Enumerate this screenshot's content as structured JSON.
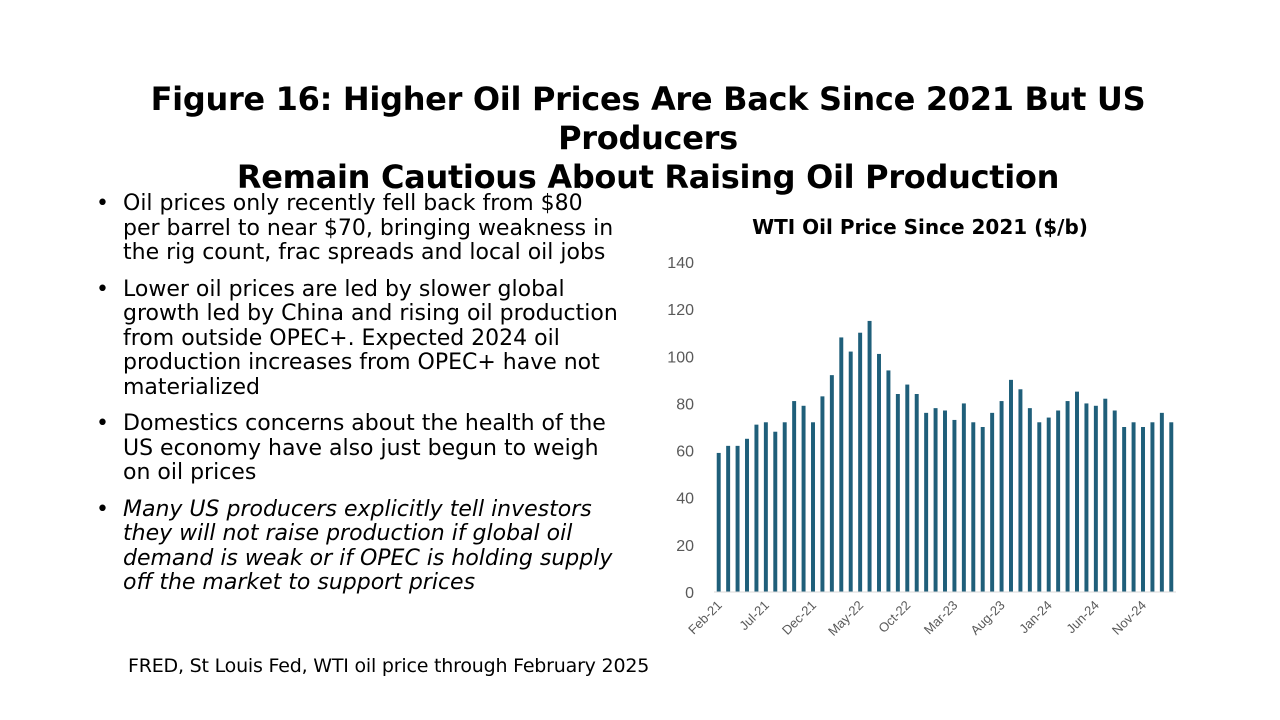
{
  "slide": {
    "title_line1": "Figure 16: Higher Oil Prices Are Back Since 2021 But US Producers",
    "title_line2": "Remain Cautious About Raising Oil Production",
    "bullets": [
      {
        "text": "Oil prices only recently fell back from $80 per barrel to near $70, bringing weakness in the rig count, frac spreads and local oil jobs",
        "italic": false
      },
      {
        "text": "Lower oil prices are led by slower global growth led by China and rising oil production from outside OPEC+. Expected 2024 oil production increases from OPEC+ have not materialized",
        "italic": false
      },
      {
        "text": "Domestics concerns about the health of the US economy have also just begun to weigh on oil prices",
        "italic": false
      },
      {
        "text": "Many US producers explicitly tell investors they will not raise production if global oil demand is weak or if OPEC is holding supply off the market to support prices",
        "italic": true
      }
    ],
    "bullet_glyph": "•",
    "source": "FRED, St Louis Fed, WTI oil price through February 2025"
  },
  "chart_data": {
    "type": "bar",
    "title": "WTI Oil Price Since 2021 ($/b)",
    "xlabel": "",
    "ylabel": "",
    "ylim": [
      0,
      140
    ],
    "yticks": [
      0,
      20,
      40,
      60,
      80,
      100,
      120,
      140
    ],
    "grid": false,
    "legend": "none",
    "bar_color": "#1F5F7A",
    "tick_labels": [
      "Feb-21",
      "Jul-21",
      "Dec-21",
      "May-22",
      "Oct-22",
      "Mar-23",
      "Aug-23",
      "Jan-24",
      "Jun-24",
      "Nov-24"
    ],
    "categories": [
      "Feb-21",
      "Mar-21",
      "Apr-21",
      "May-21",
      "Jun-21",
      "Jul-21",
      "Aug-21",
      "Sep-21",
      "Oct-21",
      "Nov-21",
      "Dec-21",
      "Jan-22",
      "Feb-22",
      "Mar-22",
      "Apr-22",
      "May-22",
      "Jun-22",
      "Jul-22",
      "Aug-22",
      "Sep-22",
      "Oct-22",
      "Nov-22",
      "Dec-22",
      "Jan-23",
      "Feb-23",
      "Mar-23",
      "Apr-23",
      "May-23",
      "Jun-23",
      "Jul-23",
      "Aug-23",
      "Sep-23",
      "Oct-23",
      "Nov-23",
      "Dec-23",
      "Jan-24",
      "Feb-24",
      "Mar-24",
      "Apr-24",
      "May-24",
      "Jun-24",
      "Jul-24",
      "Aug-24",
      "Sep-24",
      "Oct-24",
      "Nov-24",
      "Dec-24",
      "Jan-25",
      "Feb-25"
    ],
    "values": [
      59,
      62,
      62,
      65,
      71,
      72,
      68,
      72,
      81,
      79,
      72,
      83,
      92,
      108,
      102,
      110,
      115,
      101,
      94,
      84,
      88,
      84,
      76,
      78,
      77,
      73,
      80,
      72,
      70,
      76,
      81,
      90,
      86,
      78,
      72,
      74,
      77,
      81,
      85,
      80,
      79,
      82,
      77,
      70,
      72,
      70,
      72,
      76,
      72
    ]
  }
}
